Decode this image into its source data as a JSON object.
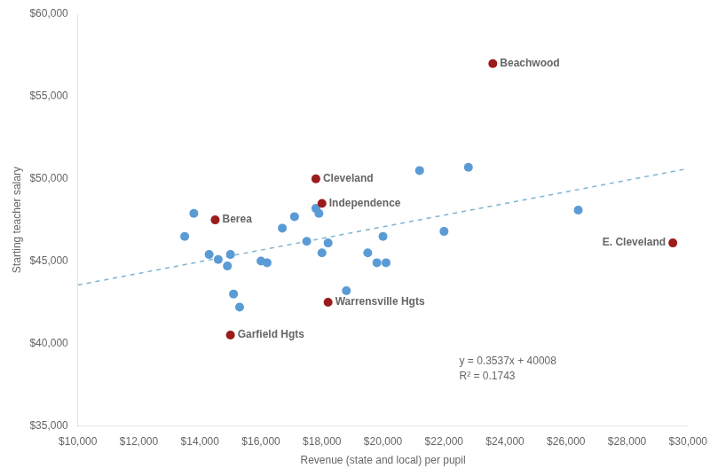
{
  "chart_data": {
    "type": "scatter",
    "xlabel": "Revenue (state and local) per pupil",
    "ylabel": "Starting teacher salary",
    "xlim": [
      10000,
      30000
    ],
    "ylim": [
      35000,
      60000
    ],
    "xticks": [
      {
        "value": 10000,
        "label": "$10,000"
      },
      {
        "value": 12000,
        "label": "$12,000"
      },
      {
        "value": 14000,
        "label": "$14,000"
      },
      {
        "value": 16000,
        "label": "$16,000"
      },
      {
        "value": 18000,
        "label": "$18,000"
      },
      {
        "value": 20000,
        "label": "$20,000"
      },
      {
        "value": 22000,
        "label": "$22,000"
      },
      {
        "value": 24000,
        "label": "$24,000"
      },
      {
        "value": 26000,
        "label": "$26,000"
      },
      {
        "value": 28000,
        "label": "$28,000"
      },
      {
        "value": 30000,
        "label": "$30,000"
      }
    ],
    "yticks": [
      {
        "value": 35000,
        "label": "$35,000"
      },
      {
        "value": 40000,
        "label": "$40,000"
      },
      {
        "value": 45000,
        "label": "$45,000"
      },
      {
        "value": 50000,
        "label": "$50,000"
      },
      {
        "value": 55000,
        "label": "$55,000"
      },
      {
        "value": 60000,
        "label": "$60,000"
      }
    ],
    "grid": false,
    "series": [
      {
        "type": "scatter",
        "color": "#5B9BD5",
        "x": [
          13500,
          13800,
          14300,
          14600,
          14900,
          15000,
          15100,
          15300,
          16000,
          16200,
          16700,
          17100,
          17500,
          17800,
          17900,
          18000,
          18200,
          18800,
          19500,
          19800,
          20000,
          20100,
          21200,
          22000,
          22800,
          26400
        ],
        "values": [
          46500,
          47900,
          45400,
          45100,
          44700,
          45400,
          43000,
          42200,
          45000,
          44900,
          47000,
          47700,
          46200,
          48200,
          47900,
          45500,
          46100,
          43200,
          45500,
          44900,
          46500,
          44900,
          50500,
          46800,
          50700,
          48100
        ]
      },
      {
        "type": "scatter",
        "color": "#9B1C1C",
        "x": [
          14500,
          17800,
          18000,
          18200,
          15000,
          23600,
          29500
        ],
        "values": [
          47500,
          50000,
          48500,
          42500,
          40500,
          57000,
          46100
        ],
        "labels": [
          "Berea",
          "Cleveland",
          "Independence",
          "Warrensville Hgts",
          "Garfield Hgts",
          "Beachwood",
          "E. Cleveland"
        ]
      },
      {
        "type": "line",
        "line_style": "dashed",
        "color": "#7FB3D3",
        "x": [
          10000,
          30000
        ],
        "values": [
          43545,
          50619
        ]
      }
    ],
    "annotations": [
      "y = 0.3537x + 40008",
      "R² = 0.1743"
    ]
  }
}
